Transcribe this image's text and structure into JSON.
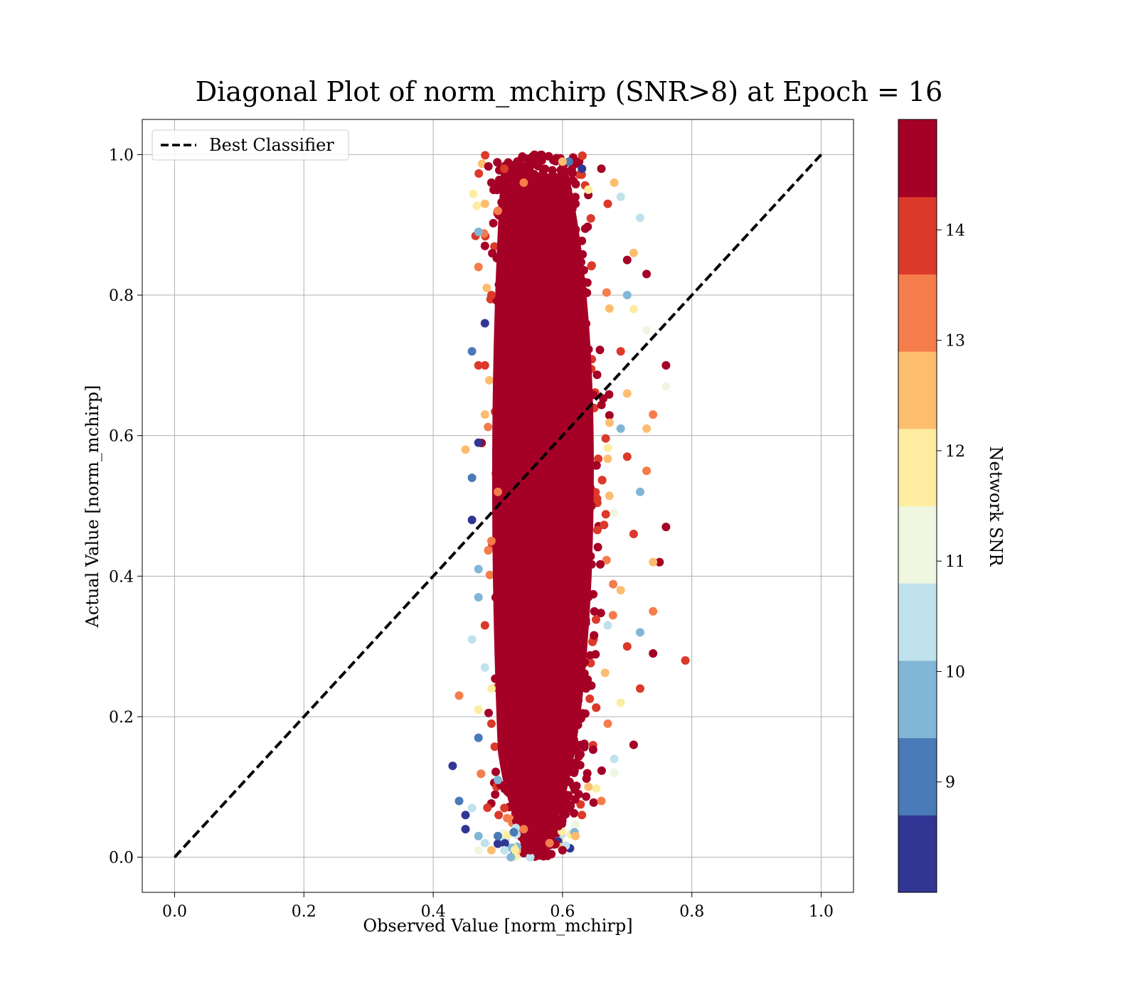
{
  "chart_data": {
    "type": "scatter",
    "title": "Diagonal Plot of norm_mchirp (SNR>8) at Epoch = 16",
    "xlabel": "Observed Value [norm_mchirp]",
    "ylabel": "Actual Value [norm_mchirp]",
    "xlim": [
      -0.05,
      1.05
    ],
    "ylim": [
      -0.05,
      1.05
    ],
    "xticks": [
      "0.0",
      "0.2",
      "0.4",
      "0.6",
      "0.8",
      "1.0"
    ],
    "yticks": [
      "0.0",
      "0.2",
      "0.4",
      "0.6",
      "0.8",
      "1.0"
    ],
    "grid": true,
    "legend": {
      "location": "upper-left",
      "entries": [
        {
          "label": "Best Classifier",
          "style": "black dashed line"
        }
      ]
    },
    "reference_line": {
      "label": "Best Classifier",
      "x": [
        0.0,
        1.0
      ],
      "y": [
        0.0,
        1.0
      ],
      "color": "#000000",
      "dash": "dashed"
    },
    "colorbar": {
      "label": "Network SNR",
      "range": [
        8.0,
        15.0
      ],
      "ticks": [
        "9",
        "10",
        "11",
        "12",
        "13",
        "14"
      ],
      "levels": [
        {
          "from": 8.0,
          "to": 8.7,
          "color": "#313695"
        },
        {
          "from": 8.7,
          "to": 9.4,
          "color": "#4a7ab7"
        },
        {
          "from": 9.4,
          "to": 10.1,
          "color": "#81b6d6"
        },
        {
          "from": 10.1,
          "to": 10.8,
          "color": "#bfe2ec"
        },
        {
          "from": 10.8,
          "to": 11.5,
          "color": "#eff7e0"
        },
        {
          "from": 11.5,
          "to": 12.2,
          "color": "#feeda1"
        },
        {
          "from": 12.2,
          "to": 12.9,
          "color": "#fdbd6f"
        },
        {
          "from": 12.9,
          "to": 13.6,
          "color": "#f57c4b"
        },
        {
          "from": 13.6,
          "to": 14.3,
          "color": "#db392a"
        },
        {
          "from": 14.3,
          "to": 15.0,
          "color": "#a50026"
        }
      ]
    },
    "scatter_summary": {
      "description_of_cloud": "dense vertical band of predictions",
      "core_x_range": [
        0.48,
        0.66
      ],
      "y_range": [
        0.0,
        1.0
      ],
      "dominant_snr": 15.0
    },
    "points_sample": [
      {
        "x": 0.56,
        "y": 0.99,
        "snr": 14.8
      },
      {
        "x": 0.53,
        "y": 0.99,
        "snr": 14.6
      },
      {
        "x": 0.61,
        "y": 0.99,
        "snr": 9.1
      },
      {
        "x": 0.63,
        "y": 0.98,
        "snr": 8.4
      },
      {
        "x": 0.66,
        "y": 0.98,
        "snr": 14.8
      },
      {
        "x": 0.68,
        "y": 0.96,
        "snr": 12.4
      },
      {
        "x": 0.69,
        "y": 0.94,
        "snr": 10.2
      },
      {
        "x": 0.72,
        "y": 0.91,
        "snr": 10.4
      },
      {
        "x": 0.71,
        "y": 0.86,
        "snr": 12.5
      },
      {
        "x": 0.73,
        "y": 0.83,
        "snr": 14.9
      },
      {
        "x": 0.7,
        "y": 0.8,
        "snr": 10.0
      },
      {
        "x": 0.73,
        "y": 0.75,
        "snr": 11.4
      },
      {
        "x": 0.76,
        "y": 0.7,
        "snr": 14.9
      },
      {
        "x": 0.76,
        "y": 0.67,
        "snr": 11.0
      },
      {
        "x": 0.74,
        "y": 0.63,
        "snr": 13.3
      },
      {
        "x": 0.73,
        "y": 0.61,
        "snr": 12.6
      },
      {
        "x": 0.73,
        "y": 0.55,
        "snr": 13.2
      },
      {
        "x": 0.72,
        "y": 0.52,
        "snr": 9.5
      },
      {
        "x": 0.76,
        "y": 0.47,
        "snr": 14.9
      },
      {
        "x": 0.75,
        "y": 0.42,
        "snr": 14.9
      },
      {
        "x": 0.74,
        "y": 0.42,
        "snr": 12.5
      },
      {
        "x": 0.74,
        "y": 0.35,
        "snr": 13.1
      },
      {
        "x": 0.72,
        "y": 0.32,
        "snr": 9.8
      },
      {
        "x": 0.79,
        "y": 0.28,
        "snr": 13.8
      },
      {
        "x": 0.74,
        "y": 0.29,
        "snr": 14.4
      },
      {
        "x": 0.72,
        "y": 0.24,
        "snr": 14.0
      },
      {
        "x": 0.71,
        "y": 0.16,
        "snr": 14.9
      },
      {
        "x": 0.68,
        "y": 0.14,
        "snr": 10.3
      },
      {
        "x": 0.66,
        "y": 0.08,
        "snr": 13.0
      },
      {
        "x": 0.43,
        "y": 0.13,
        "snr": 8.2
      },
      {
        "x": 0.44,
        "y": 0.08,
        "snr": 8.9
      },
      {
        "x": 0.45,
        "y": 0.06,
        "snr": 8.3
      },
      {
        "x": 0.45,
        "y": 0.04,
        "snr": 8.5
      },
      {
        "x": 0.46,
        "y": 0.07,
        "snr": 10.3
      },
      {
        "x": 0.47,
        "y": 0.03,
        "snr": 9.6
      },
      {
        "x": 0.47,
        "y": 0.01,
        "snr": 11.0
      },
      {
        "x": 0.48,
        "y": 0.02,
        "snr": 10.5
      },
      {
        "x": 0.49,
        "y": 0.01,
        "snr": 12.2
      },
      {
        "x": 0.5,
        "y": 0.03,
        "snr": 9.2
      },
      {
        "x": 0.51,
        "y": 0.01,
        "snr": 10.6
      },
      {
        "x": 0.52,
        "y": 0.0,
        "snr": 9.6
      },
      {
        "x": 0.55,
        "y": 0.0,
        "snr": 10.5
      },
      {
        "x": 0.44,
        "y": 0.23,
        "snr": 13.2
      },
      {
        "x": 0.47,
        "y": 0.17,
        "snr": 9.0
      },
      {
        "x": 0.47,
        "y": 0.21,
        "snr": 12.1
      },
      {
        "x": 0.48,
        "y": 0.27,
        "snr": 10.3
      },
      {
        "x": 0.46,
        "y": 0.31,
        "snr": 10.6
      },
      {
        "x": 0.47,
        "y": 0.37,
        "snr": 9.8
      },
      {
        "x": 0.47,
        "y": 0.41,
        "snr": 9.5
      },
      {
        "x": 0.46,
        "y": 0.48,
        "snr": 8.3
      },
      {
        "x": 0.46,
        "y": 0.54,
        "snr": 9.3
      },
      {
        "x": 0.45,
        "y": 0.58,
        "snr": 12.2
      },
      {
        "x": 0.47,
        "y": 0.59,
        "snr": 8.1
      },
      {
        "x": 0.47,
        "y": 0.7,
        "snr": 13.8
      },
      {
        "x": 0.46,
        "y": 0.72,
        "snr": 9.0
      },
      {
        "x": 0.48,
        "y": 0.76,
        "snr": 8.4
      },
      {
        "x": 0.47,
        "y": 0.84,
        "snr": 13.2
      },
      {
        "x": 0.47,
        "y": 0.89,
        "snr": 9.4
      },
      {
        "x": 0.48,
        "y": 0.93,
        "snr": 12.6
      },
      {
        "x": 0.49,
        "y": 0.96,
        "snr": 14.8
      },
      {
        "x": 0.51,
        "y": 0.98,
        "snr": 14.0
      },
      {
        "x": 0.48,
        "y": 0.87,
        "snr": 14.9
      },
      {
        "x": 0.48,
        "y": 0.63,
        "snr": 12.6
      },
      {
        "x": 0.49,
        "y": 0.45,
        "snr": 13.0
      },
      {
        "x": 0.48,
        "y": 0.33,
        "snr": 13.7
      },
      {
        "x": 0.49,
        "y": 0.19,
        "snr": 14.2
      },
      {
        "x": 0.5,
        "y": 0.11,
        "snr": 9.9
      },
      {
        "x": 0.54,
        "y": 0.04,
        "snr": 13.5
      },
      {
        "x": 0.58,
        "y": 0.02,
        "snr": 12.9
      },
      {
        "x": 0.62,
        "y": 0.03,
        "snr": 12.3
      },
      {
        "x": 0.63,
        "y": 0.06,
        "snr": 13.8
      },
      {
        "x": 0.64,
        "y": 0.1,
        "snr": 12.4
      },
      {
        "x": 0.67,
        "y": 0.19,
        "snr": 13.1
      },
      {
        "x": 0.69,
        "y": 0.22,
        "snr": 12.0
      },
      {
        "x": 0.7,
        "y": 0.3,
        "snr": 14.2
      },
      {
        "x": 0.69,
        "y": 0.38,
        "snr": 12.8
      },
      {
        "x": 0.71,
        "y": 0.46,
        "snr": 13.9
      },
      {
        "x": 0.7,
        "y": 0.57,
        "snr": 14.1
      },
      {
        "x": 0.7,
        "y": 0.66,
        "snr": 12.7
      },
      {
        "x": 0.69,
        "y": 0.72,
        "snr": 13.7
      },
      {
        "x": 0.7,
        "y": 0.85,
        "snr": 14.9
      },
      {
        "x": 0.67,
        "y": 0.93,
        "snr": 13.9
      },
      {
        "x": 0.64,
        "y": 0.95,
        "snr": 11.8
      },
      {
        "x": 0.6,
        "y": 0.99,
        "snr": 12.5
      },
      {
        "x": 0.54,
        "y": 0.96,
        "snr": 13.4
      },
      {
        "x": 0.5,
        "y": 0.92,
        "snr": 13.1
      },
      {
        "x": 0.49,
        "y": 0.8,
        "snr": 13.6
      },
      {
        "x": 0.48,
        "y": 0.7,
        "snr": 14.0
      },
      {
        "x": 0.5,
        "y": 0.52,
        "snr": 12.9
      },
      {
        "x": 0.49,
        "y": 0.24,
        "snr": 11.6
      },
      {
        "x": 0.51,
        "y": 0.07,
        "snr": 14.1
      },
      {
        "x": 0.55,
        "y": 0.01,
        "snr": 14.5
      },
      {
        "x": 0.6,
        "y": 0.01,
        "snr": 14.7
      },
      {
        "x": 0.68,
        "y": 0.49,
        "snr": 10.9
      },
      {
        "x": 0.69,
        "y": 0.61,
        "snr": 9.7
      },
      {
        "x": 0.71,
        "y": 0.78,
        "snr": 11.9
      },
      {
        "x": 0.67,
        "y": 0.33,
        "snr": 10.1
      },
      {
        "x": 0.68,
        "y": 0.12,
        "snr": 11.2
      }
    ]
  }
}
